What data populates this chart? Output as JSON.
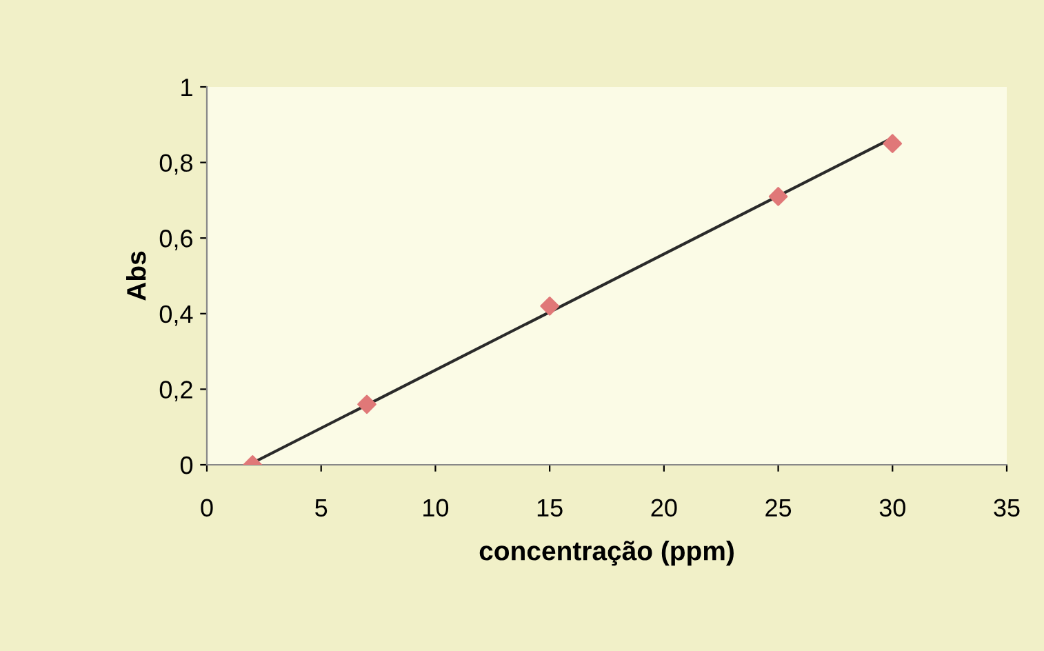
{
  "chart_data": {
    "type": "scatter",
    "xlabel": "concentração (ppm)",
    "ylabel": "Abs",
    "xlim": [
      0,
      35
    ],
    "xticks": [
      0,
      5,
      10,
      15,
      20,
      25,
      30,
      35
    ],
    "ylim": [
      0,
      1
    ],
    "yticks": [
      {
        "value": 0,
        "label": "0"
      },
      {
        "value": 0.2,
        "label": "0,2"
      },
      {
        "value": 0.4,
        "label": "0,4"
      },
      {
        "value": 0.6,
        "label": "0,6"
      },
      {
        "value": 0.8,
        "label": "0,8"
      },
      {
        "value": 1,
        "label": "1"
      }
    ],
    "grid": false,
    "legend": false,
    "marker": "diamond",
    "series": [
      {
        "color": "#e07878",
        "x": [
          2,
          7,
          15,
          25,
          30
        ],
        "values": [
          0,
          0.16,
          0.42,
          0.71,
          0.85
        ]
      },
      {
        "type": "line",
        "color": "#2a2a2a",
        "x": [
          2,
          30
        ],
        "values": [
          0.005,
          0.865
        ],
        "line_style": "solid",
        "marker": "none"
      }
    ]
  }
}
